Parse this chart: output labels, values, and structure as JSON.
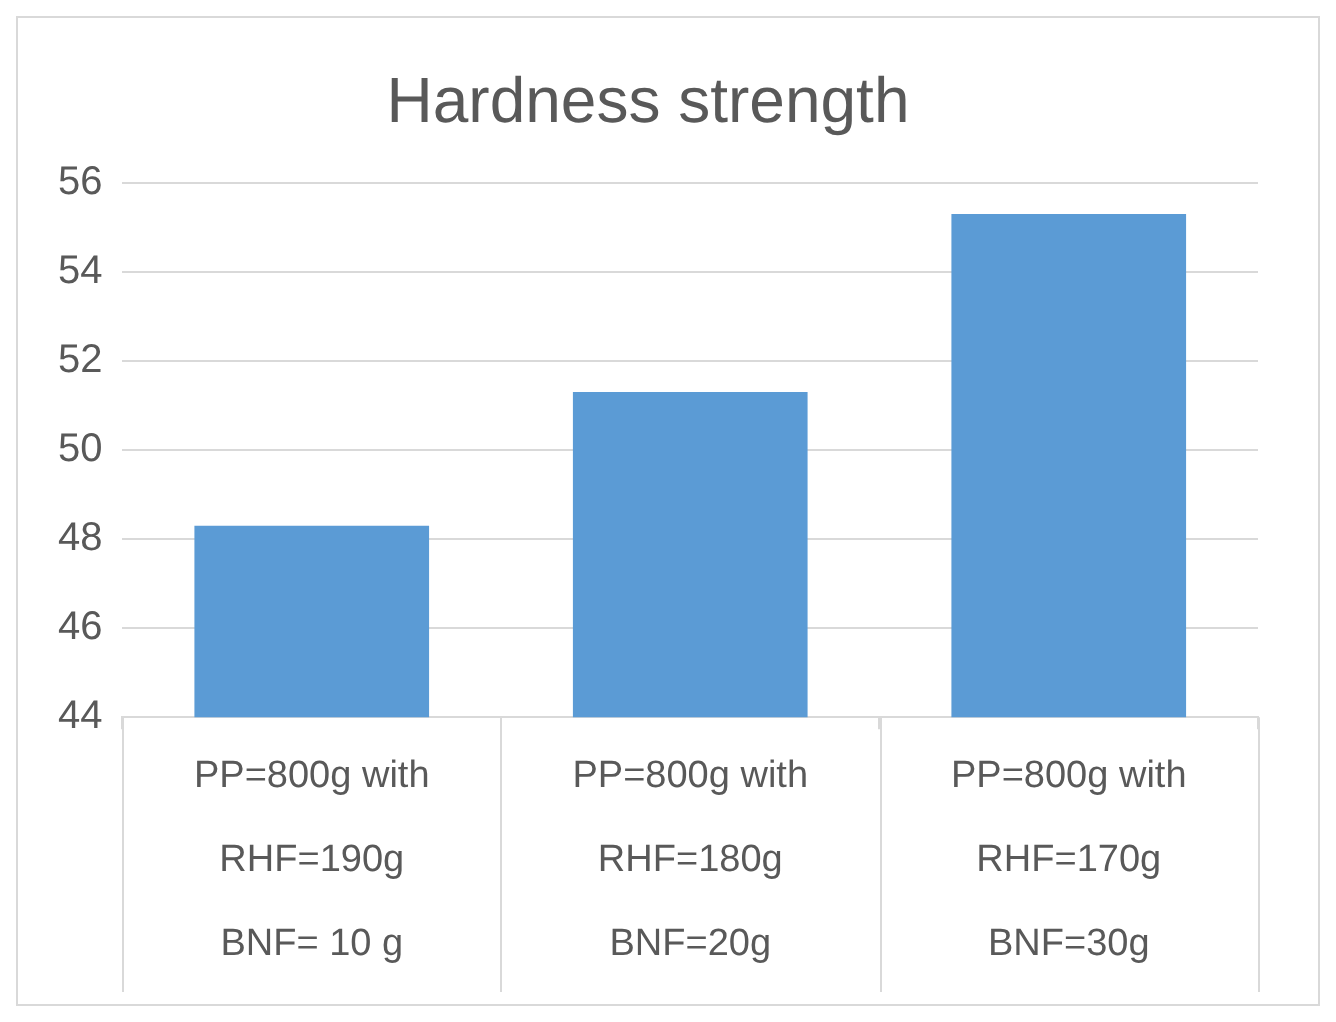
{
  "chart_data": {
    "type": "bar",
    "title": "Hardness strength",
    "categories": [
      "PP=800g with\nRHF=190g\nBNF= 10 g",
      "PP=800g with\nRHF=180g\nBNF=20g",
      "PP=800g with\nRHF=170g\nBNF=30g"
    ],
    "values": [
      48.3,
      51.3,
      55.3
    ],
    "color": "#5b9bd5",
    "ylim": [
      44,
      56
    ],
    "yticks": [
      44,
      46,
      48,
      50,
      52,
      54,
      56
    ],
    "grid": "y"
  }
}
